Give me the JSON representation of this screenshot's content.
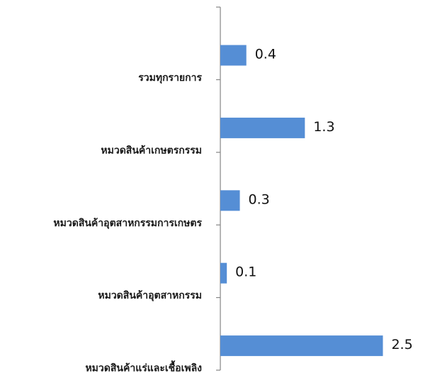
{
  "chart_data": {
    "type": "bar",
    "orientation": "horizontal",
    "title": "",
    "xlabel": "",
    "ylabel": "",
    "categories": [
      "รวมทุกรายการ",
      "หมวดสินค้าเกษตรกรรม",
      "หมวดสินค้าอุตสาหกรรมการเกษตร",
      "หมวดสินค้าอุตสาหกรรม",
      "หมวดสินค้าแร่และเชื้อเพลิง"
    ],
    "values": [
      0.4,
      1.3,
      0.3,
      0.1,
      2.5
    ],
    "value_labels": [
      "0.4",
      "1.3",
      "0.3",
      "0.1",
      "2.5"
    ],
    "xlim": [
      0,
      2.8
    ],
    "grid": false,
    "legend": "none",
    "bar_color": "#558ed5",
    "axis_color": "#868686"
  }
}
